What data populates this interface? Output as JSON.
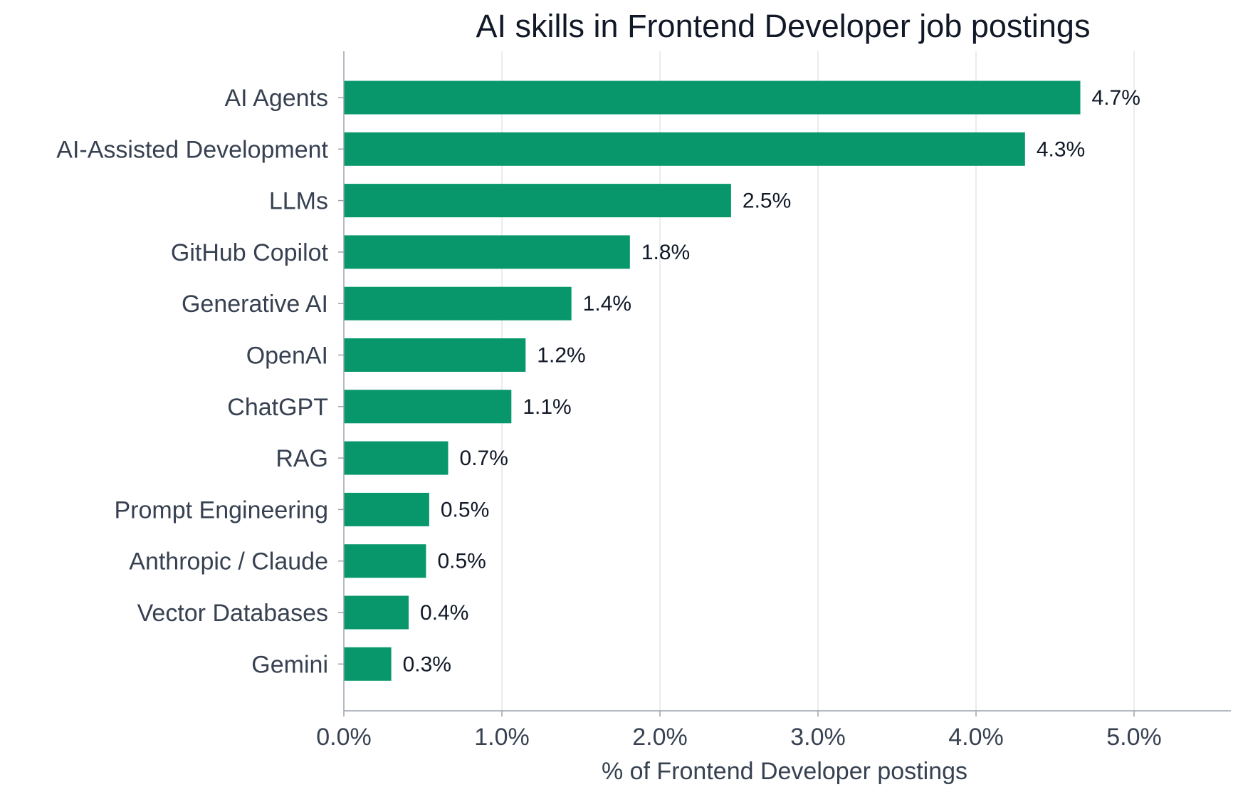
{
  "chart_data": {
    "type": "bar",
    "orientation": "horizontal",
    "title": "AI skills in Frontend Developer job postings",
    "xlabel": "% of Frontend Developer postings",
    "ylabel": "",
    "xlim": [
      0,
      5.6
    ],
    "x_ticks": [
      0,
      1,
      2,
      3,
      4,
      5
    ],
    "x_tick_labels": [
      "0.0%",
      "1.0%",
      "2.0%",
      "3.0%",
      "4.0%",
      "5.0%"
    ],
    "grid": "vertical",
    "legend": "none",
    "bar_color": "#07976b",
    "categories": [
      "AI Agents",
      "AI-Assisted Development",
      "LLMs",
      "GitHub Copilot",
      "Generative AI",
      "OpenAI",
      "ChatGPT",
      "RAG",
      "Prompt Engineering",
      "Anthropic / Claude",
      "Vector Databases",
      "Gemini"
    ],
    "values": [
      4.66,
      4.31,
      2.45,
      1.81,
      1.44,
      1.15,
      1.06,
      0.66,
      0.54,
      0.52,
      0.41,
      0.3
    ],
    "value_labels": [
      "4.7%",
      "4.3%",
      "2.5%",
      "1.8%",
      "1.4%",
      "1.2%",
      "1.1%",
      "0.7%",
      "0.5%",
      "0.5%",
      "0.4%",
      "0.3%"
    ]
  }
}
